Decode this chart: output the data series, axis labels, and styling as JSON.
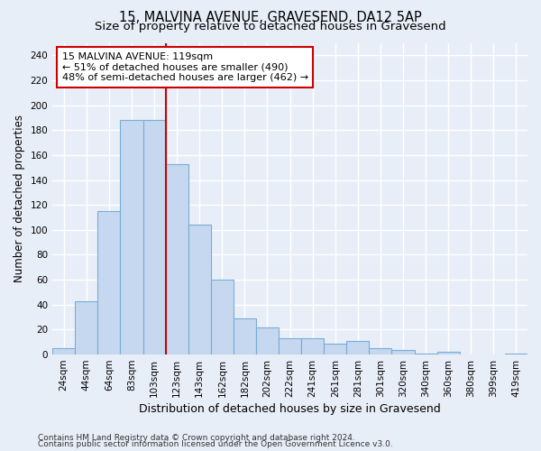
{
  "title": "15, MALVINA AVENUE, GRAVESEND, DA12 5AP",
  "subtitle": "Size of property relative to detached houses in Gravesend",
  "xlabel": "Distribution of detached houses by size in Gravesend",
  "ylabel": "Number of detached properties",
  "categories": [
    "24sqm",
    "44sqm",
    "64sqm",
    "83sqm",
    "103sqm",
    "123sqm",
    "143sqm",
    "162sqm",
    "182sqm",
    "202sqm",
    "222sqm",
    "241sqm",
    "261sqm",
    "281sqm",
    "301sqm",
    "320sqm",
    "340sqm",
    "360sqm",
    "380sqm",
    "399sqm",
    "419sqm"
  ],
  "values": [
    5,
    43,
    115,
    188,
    188,
    153,
    104,
    60,
    29,
    22,
    13,
    13,
    9,
    11,
    5,
    4,
    1,
    2,
    0,
    0,
    1
  ],
  "bar_color": "#c5d8f0",
  "bar_edge_color": "#7aadd4",
  "vline_color": "#cc0000",
  "annotation_title": "15 MALVINA AVENUE: 119sqm",
  "annotation_line2": "← 51% of detached houses are smaller (490)",
  "annotation_line3": "48% of semi-detached houses are larger (462) →",
  "annotation_box_color": "#ffffff",
  "annotation_box_edge": "#cc0000",
  "ylim": [
    0,
    250
  ],
  "yticks": [
    0,
    20,
    40,
    60,
    80,
    100,
    120,
    140,
    160,
    180,
    200,
    220,
    240
  ],
  "footnote1": "Contains HM Land Registry data © Crown copyright and database right 2024.",
  "footnote2": "Contains public sector information licensed under the Open Government Licence v3.0.",
  "background_color": "#e8eef8",
  "grid_color": "#ffffff",
  "title_fontsize": 10.5,
  "subtitle_fontsize": 9.5,
  "xlabel_fontsize": 9,
  "ylabel_fontsize": 8.5,
  "tick_fontsize": 7.5,
  "footnote_fontsize": 6.5,
  "annotation_fontsize": 8
}
